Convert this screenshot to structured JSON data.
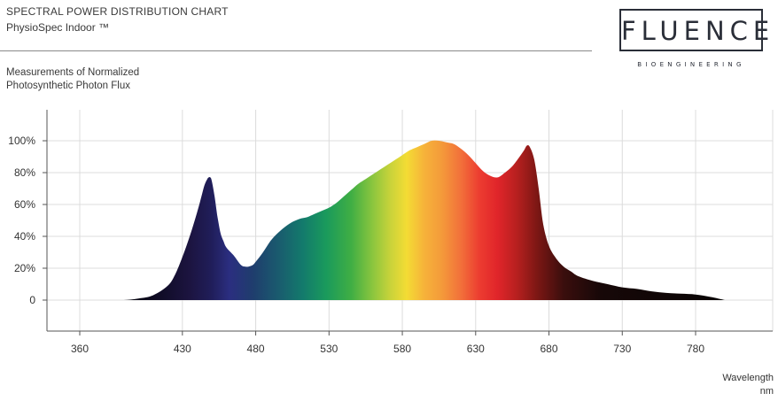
{
  "header": {
    "title": "SPECTRAL POWER DISTRIBUTION CHART",
    "subtitle": "PhysioSpec Indoor ™"
  },
  "logo": {
    "wordmark": "FLUENCE",
    "tagline": "BIOENGINEERING"
  },
  "measure_label": {
    "line1": "Measurements of Normalized",
    "line2": "Photosynthetic Photon Flux"
  },
  "chart_data": {
    "type": "area",
    "title": "SPECTRAL POWER DISTRIBUTION CHART",
    "subtitle": "PhysioSpec Indoor ™",
    "ylabel": "Measurements of Normalized Photosynthetic Photon Flux",
    "xlabel": "Wavelength",
    "xunit": "nm",
    "xlim": [
      360,
      850
    ],
    "ylim": [
      0,
      100
    ],
    "x_ticks": [
      360,
      430,
      480,
      530,
      580,
      630,
      680,
      730,
      780
    ],
    "y_ticks": [
      0,
      20,
      40,
      60,
      80,
      100
    ],
    "y_tick_labels": [
      "0",
      "20%",
      "40%",
      "60%",
      "80%",
      "100%"
    ],
    "grid": true,
    "fill": "visible-spectrum gradient",
    "series": [
      {
        "x": [
          380,
          390,
          400,
          410,
          420,
          425,
          430,
          435,
          440,
          443,
          445,
          447,
          448,
          449,
          450,
          452,
          454,
          456,
          458,
          460,
          465,
          470,
          473,
          475,
          478,
          480,
          485,
          490,
          495,
          500,
          505,
          510,
          515,
          520,
          525,
          530,
          535,
          540,
          545,
          550,
          555,
          560,
          565,
          570,
          575,
          580,
          585,
          590,
          595,
          600,
          605,
          610,
          615,
          620,
          625,
          630,
          635,
          640,
          645,
          650,
          655,
          660,
          663,
          665,
          667,
          670,
          673,
          676,
          680,
          685,
          690,
          695,
          700,
          710,
          720,
          730,
          740,
          750,
          760,
          770,
          780,
          790,
          800
        ],
        "y": [
          0,
          0,
          1,
          3,
          9,
          16,
          27,
          40,
          55,
          65,
          72,
          76,
          77,
          77,
          75,
          65,
          52,
          42,
          37,
          33,
          28,
          22,
          21,
          21,
          22,
          24,
          30,
          37,
          42,
          46,
          49,
          51,
          52,
          54,
          56,
          58,
          61,
          65,
          69,
          73,
          76,
          79,
          82,
          85,
          88,
          91,
          94,
          96,
          98,
          100,
          100,
          99,
          98,
          95,
          91,
          86,
          81,
          78,
          77,
          80,
          84,
          90,
          94,
          97,
          96,
          88,
          70,
          48,
          34,
          26,
          21,
          18,
          15,
          12,
          10,
          8,
          7,
          5.5,
          4.5,
          4,
          3.5,
          2,
          0
        ]
      }
    ]
  }
}
